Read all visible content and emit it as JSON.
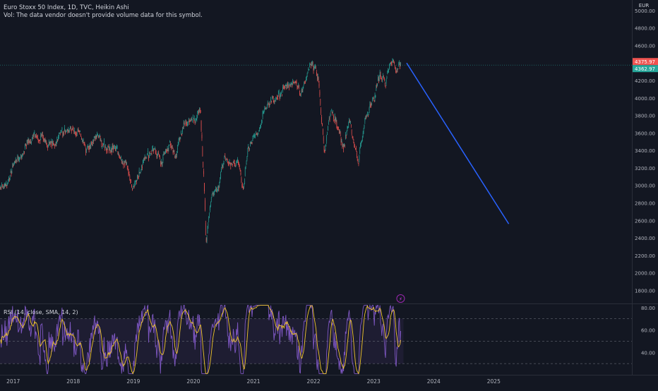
{
  "header": {
    "title": "Euro Stoxx 50 Index, 1D, TVC, Heikin Ashi",
    "volume_note": "Vol: The data vendor doesn't provide volume data for this symbol."
  },
  "currency": "EUR",
  "price_labels": {
    "last": "4375.97",
    "prev": "4362.97"
  },
  "rsi_label": "RSI (14, close, SMA, 14, 2)",
  "colors": {
    "up": "#26a69a",
    "down": "#ef5350",
    "projection": "#2962ff",
    "rsi": "#7e57c2",
    "rsi_ma": "#f0c52c",
    "background": "#131722"
  },
  "chart_data": [
    {
      "type": "candlestick",
      "title": "Euro Stoxx 50 Index, 1D, TVC, Heikin Ashi",
      "y_axis_ticks": [
        "1800.00",
        "2000.00",
        "2200.00",
        "2400.00",
        "2600.00",
        "2800.00",
        "3000.00",
        "3200.00",
        "3400.00",
        "3600.00",
        "3800.00",
        "4000.00",
        "4200.00",
        "4400.00",
        "4600.00",
        "4800.00",
        "5000.00"
      ],
      "ylim": [
        1650,
        5120
      ],
      "x_axis_ticks": [
        "2017",
        "2018",
        "2019",
        "2020",
        "2021",
        "2022",
        "2023",
        "2024",
        "2025"
      ],
      "xlim": [
        2016.78,
        2027.3
      ],
      "path": [
        [
          2016.78,
          2980
        ],
        [
          2016.9,
          3050
        ],
        [
          2017.0,
          3220
        ],
        [
          2017.15,
          3380
        ],
        [
          2017.35,
          3600
        ],
        [
          2017.55,
          3480
        ],
        [
          2017.7,
          3440
        ],
        [
          2017.85,
          3650
        ],
        [
          2018.0,
          3620
        ],
        [
          2018.1,
          3650
        ],
        [
          2018.2,
          3400
        ],
        [
          2018.4,
          3550
        ],
        [
          2018.55,
          3450
        ],
        [
          2018.75,
          3380
        ],
        [
          2018.9,
          3180
        ],
        [
          2019.0,
          2940
        ],
        [
          2019.2,
          3300
        ],
        [
          2019.35,
          3450
        ],
        [
          2019.45,
          3250
        ],
        [
          2019.6,
          3480
        ],
        [
          2019.7,
          3350
        ],
        [
          2019.85,
          3680
        ],
        [
          2020.0,
          3730
        ],
        [
          2020.12,
          3840
        ],
        [
          2020.17,
          3120
        ],
        [
          2020.21,
          2370
        ],
        [
          2020.3,
          2850
        ],
        [
          2020.42,
          2950
        ],
        [
          2020.5,
          3300
        ],
        [
          2020.62,
          3200
        ],
        [
          2020.75,
          3250
        ],
        [
          2020.83,
          2950
        ],
        [
          2020.92,
          3450
        ],
        [
          2021.0,
          3530
        ],
        [
          2021.2,
          3850
        ],
        [
          2021.35,
          4000
        ],
        [
          2021.5,
          4080
        ],
        [
          2021.7,
          4150
        ],
        [
          2021.8,
          4050
        ],
        [
          2021.9,
          4250
        ],
        [
          2021.98,
          4400
        ],
        [
          2022.02,
          4330
        ],
        [
          2022.08,
          4250
        ],
        [
          2022.13,
          3800
        ],
        [
          2022.18,
          3400
        ],
        [
          2022.3,
          3880
        ],
        [
          2022.42,
          3600
        ],
        [
          2022.5,
          3450
        ],
        [
          2022.6,
          3740
        ],
        [
          2022.7,
          3450
        ],
        [
          2022.75,
          3280
        ],
        [
          2022.85,
          3700
        ],
        [
          2022.95,
          3900
        ],
        [
          2023.0,
          3980
        ],
        [
          2023.1,
          4250
        ],
        [
          2023.2,
          4180
        ],
        [
          2023.25,
          4320
        ],
        [
          2023.3,
          4400
        ],
        [
          2023.38,
          4330
        ],
        [
          2023.45,
          4370
        ]
      ]
    },
    {
      "type": "line",
      "name": "projection",
      "x": [
        2023.55,
        2025.25
      ],
      "y": [
        4400,
        2560
      ]
    },
    {
      "type": "line",
      "title": "RSI (14, close, SMA, 14, 2)",
      "y_axis_ticks": [
        "40.00",
        "60.00",
        "80.00"
      ],
      "ylim": [
        20,
        83
      ],
      "bands": [
        30,
        50,
        70
      ]
    }
  ]
}
